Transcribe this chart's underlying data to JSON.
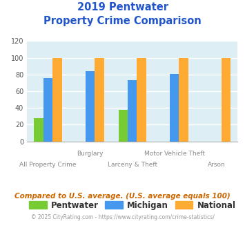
{
  "title_line1": "2019 Pentwater",
  "title_line2": "Property Crime Comparison",
  "title_color": "#2255cc",
  "pentwater_vals": [
    28,
    0,
    38,
    0,
    0
  ],
  "michigan_vals": [
    76,
    84,
    73,
    81,
    0
  ],
  "national_vals": [
    100,
    100,
    100,
    100,
    100
  ],
  "pentwater_color": "#77cc33",
  "michigan_color": "#4499ee",
  "national_color": "#ffaa33",
  "ylim": [
    0,
    120
  ],
  "yticks": [
    0,
    20,
    40,
    60,
    80,
    100,
    120
  ],
  "bg_color": "#deeef5",
  "grid_color": "#ffffff",
  "row1_labels": [
    "",
    "Burglary",
    "",
    "Motor Vehicle Theft",
    ""
  ],
  "row2_labels": [
    "All Property Crime",
    "",
    "Larceny & Theft",
    "",
    "Arson"
  ],
  "legend_labels": [
    "Pentwater",
    "Michigan",
    "National"
  ],
  "footnote1": "Compared to U.S. average. (U.S. average equals 100)",
  "footnote2": "© 2025 CityRating.com - https://www.cityrating.com/crime-statistics/",
  "footnote1_color": "#cc6600",
  "footnote2_color": "#999999"
}
